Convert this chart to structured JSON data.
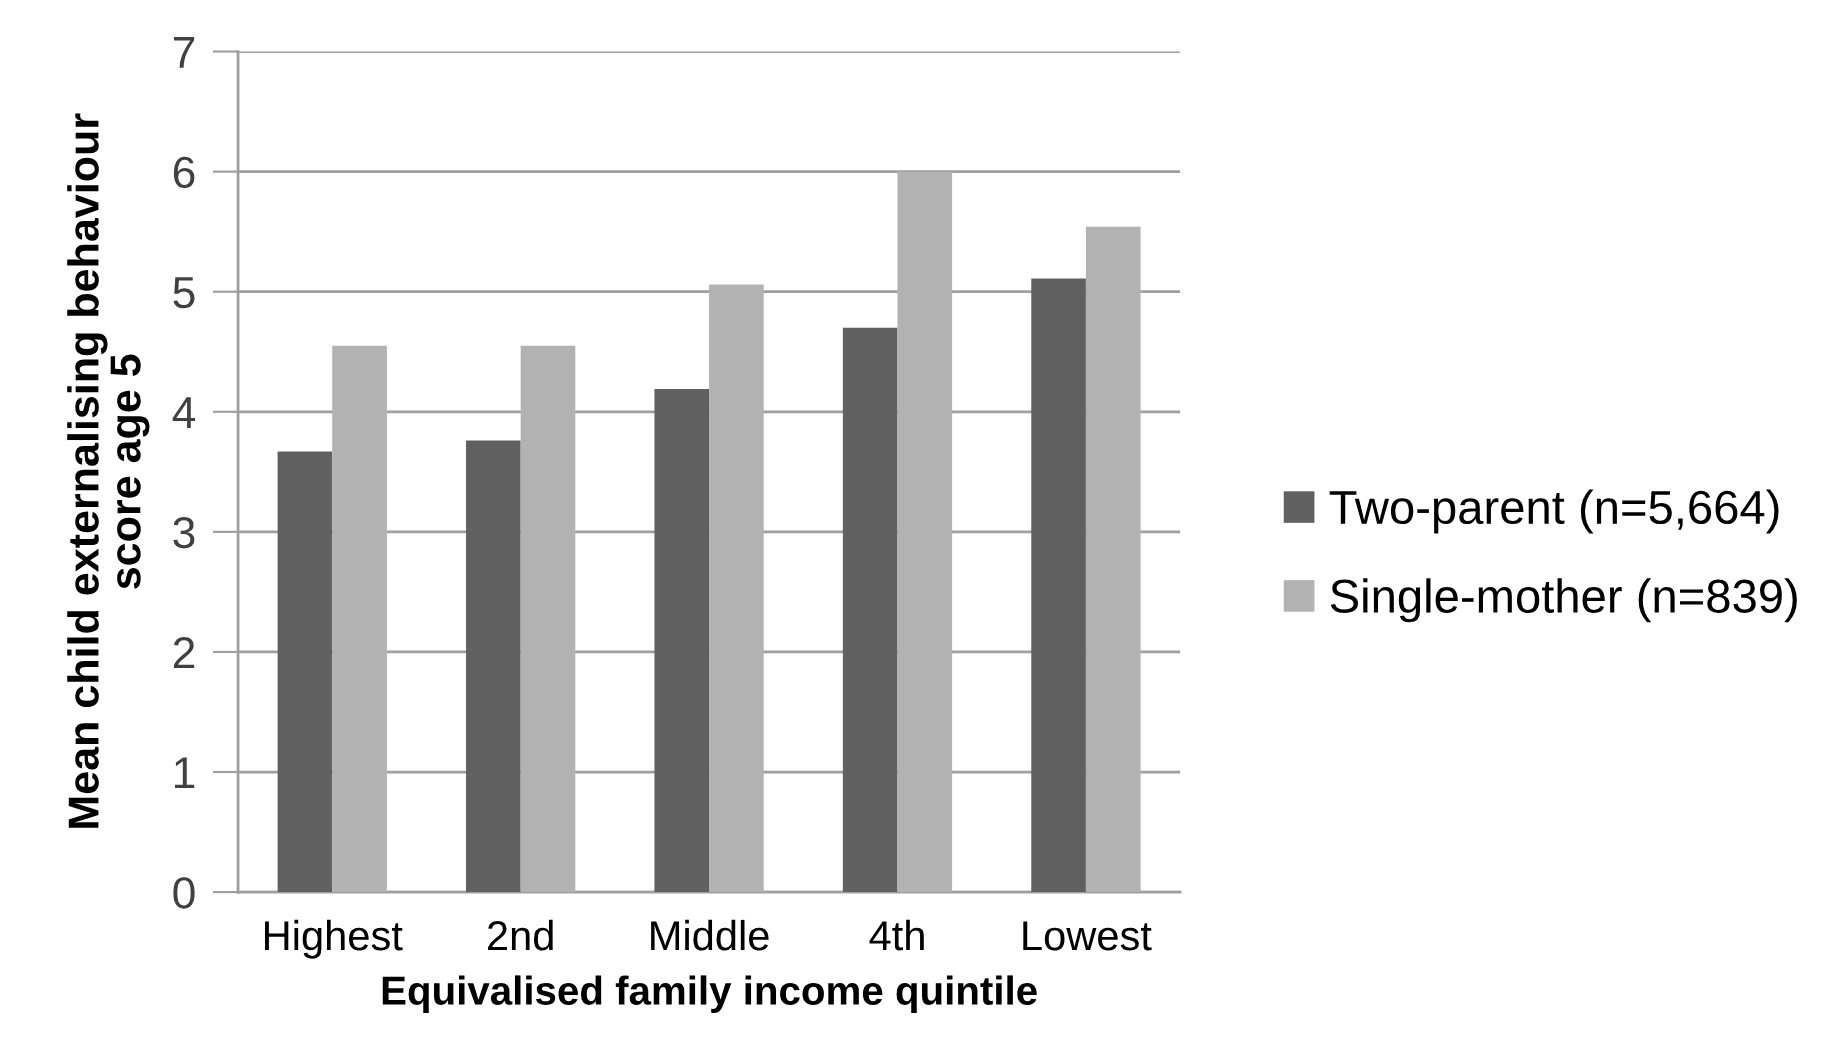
{
  "chart_data": {
    "type": "bar",
    "xlabel": "Equivalised family income quintile",
    "ylabel": "Mean child externalising behaviour\nscore age 5",
    "categories": [
      "Highest",
      "2nd",
      "Middle",
      "4th",
      "Lowest"
    ],
    "series": [
      {
        "name": "Two-parent (n=5,664)",
        "color": "#606060",
        "values": [
          3.67,
          3.76,
          4.19,
          4.7,
          5.11
        ]
      },
      {
        "name": "Single-mother (n=839)",
        "color": "#b2b2b2",
        "values": [
          4.55,
          4.55,
          5.06,
          6.0,
          5.54
        ]
      }
    ],
    "ylim": [
      0,
      7
    ],
    "yticks": [
      0,
      1,
      2,
      3,
      4,
      5,
      6,
      7
    ],
    "grid": "y",
    "legend": "right"
  }
}
